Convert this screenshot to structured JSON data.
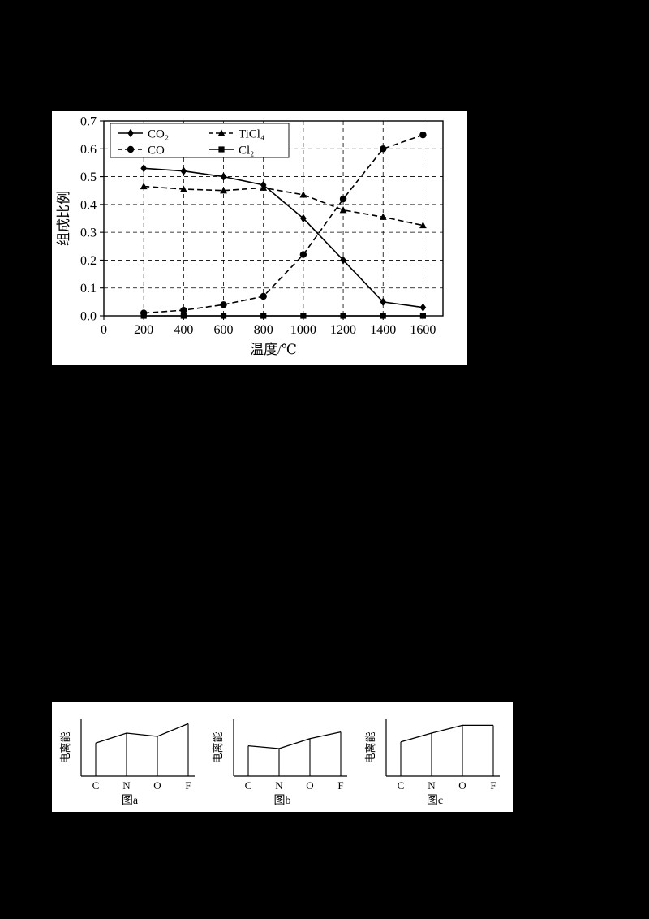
{
  "page": {
    "background": "#000000",
    "panel_background": "#ffffff",
    "ink": "#000000"
  },
  "chart_data": [
    {
      "id": "composition-vs-temperature",
      "type": "line",
      "title": "",
      "xlabel": "温度/℃",
      "ylabel": "组成比例",
      "xlim": [
        0,
        1700
      ],
      "ylim": [
        0,
        0.7
      ],
      "xticks": [
        0,
        200,
        400,
        600,
        800,
        1000,
        1200,
        1400,
        1600
      ],
      "yticks": [
        0,
        0.1,
        0.2,
        0.3,
        0.4,
        0.5,
        0.6,
        0.7
      ],
      "grid": true,
      "legend_position": "top-left-inside",
      "legend_order": [
        "CO2",
        "TiCl4",
        "CO",
        "Cl2"
      ],
      "x": [
        200,
        400,
        600,
        800,
        1000,
        1200,
        1400,
        1600
      ],
      "series": [
        {
          "name": "CO2",
          "label": "CO₂",
          "marker": "diamond",
          "line": "solid",
          "values": [
            0.53,
            0.52,
            0.5,
            0.47,
            0.35,
            0.2,
            0.05,
            0.03
          ]
        },
        {
          "name": "CO",
          "label": "CO",
          "marker": "circle",
          "line": "dashed",
          "values": [
            0.01,
            0.02,
            0.04,
            0.07,
            0.22,
            0.42,
            0.6,
            0.65
          ]
        },
        {
          "name": "TiCl4",
          "label": "TiCl₄",
          "marker": "triangle",
          "line": "dashed",
          "values": [
            0.465,
            0.455,
            0.45,
            0.46,
            0.435,
            0.38,
            0.355,
            0.325
          ]
        },
        {
          "name": "Cl2",
          "label": "Cl₂",
          "marker": "square",
          "line": "solid",
          "values": [
            0,
            0,
            0,
            0,
            0,
            0,
            0,
            0
          ]
        }
      ]
    },
    {
      "id": "ionization-a",
      "type": "line",
      "caption": "图a",
      "ylabel": "电离能",
      "categories": [
        "C",
        "N",
        "O",
        "F"
      ],
      "values": [
        0.6,
        0.78,
        0.72,
        0.95
      ]
    },
    {
      "id": "ionization-b",
      "type": "line",
      "caption": "图b",
      "ylabel": "电离能",
      "categories": [
        "C",
        "N",
        "O",
        "F"
      ],
      "values": [
        0.55,
        0.5,
        0.68,
        0.8
      ]
    },
    {
      "id": "ionization-c",
      "type": "line",
      "caption": "图c",
      "ylabel": "电离能",
      "categories": [
        "C",
        "N",
        "O",
        "F"
      ],
      "values": [
        0.62,
        0.78,
        0.92,
        0.92
      ]
    }
  ]
}
